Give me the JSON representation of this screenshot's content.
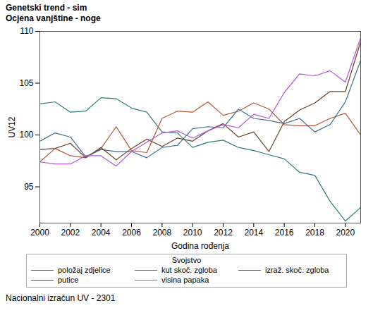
{
  "chart_data": {
    "type": "line",
    "title": "Genetski trend - sim",
    "subtitle": "Ocjena vanjštine - noge",
    "xlabel": "Godina rođenja",
    "ylabel": "UV12",
    "legend_title": "Svojstvo",
    "caption": "Nacionalni izračun UV - 2301",
    "legend": "bottom",
    "grid": false,
    "x": [
      2000,
      2001,
      2002,
      2003,
      2004,
      2005,
      2006,
      2007,
      2008,
      2009,
      2010,
      2011,
      2012,
      2013,
      2014,
      2015,
      2016,
      2017,
      2018,
      2019,
      2020,
      2021
    ],
    "xlim": [
      2000,
      2021
    ],
    "xticks": [
      2000,
      2002,
      2004,
      2006,
      2008,
      2010,
      2012,
      2014,
      2016,
      2018,
      2020
    ],
    "ylim": [
      91.5,
      110
    ],
    "yticks": [
      95,
      100,
      105,
      110
    ],
    "series": [
      {
        "name": "položaj zdjelice",
        "color": "#2a7f78",
        "values": [
          103.0,
          103.2,
          102.2,
          102.3,
          103.6,
          103.5,
          102.6,
          102.2,
          100.3,
          100.2,
          98.8,
          99.3,
          99.5,
          98.8,
          98.5,
          98.1,
          97.7,
          96.4,
          96.1,
          93.6,
          91.7,
          93.0
        ]
      },
      {
        "name": "kut skoč. zgloba",
        "color": "#b0563a",
        "values": [
          97.4,
          98.7,
          98.0,
          97.8,
          98.7,
          100.8,
          98.5,
          98.3,
          101.6,
          102.3,
          102.2,
          103.2,
          101.9,
          102.3,
          103.1,
          102.5,
          101.0,
          100.9,
          100.9,
          101.6,
          102.1,
          100.0
        ]
      },
      {
        "name": "izraž. skoč. zgloba",
        "color": "#3e6e8e",
        "values": [
          99.4,
          100.2,
          99.8,
          97.9,
          98.6,
          98.4,
          98.4,
          97.8,
          98.8,
          99.0,
          100.6,
          100.8,
          100.7,
          102.5,
          101.6,
          101.4,
          101.1,
          101.6,
          100.3,
          101.0,
          103.2,
          107.2
        ]
      },
      {
        "name": "putice",
        "color": "#6b4226",
        "values": [
          98.6,
          98.7,
          99.2,
          97.8,
          98.8,
          97.6,
          98.7,
          99.6,
          98.9,
          99.7,
          99.4,
          100.4,
          101.1,
          99.8,
          100.3,
          98.4,
          101.3,
          102.4,
          103.1,
          104.2,
          104.2,
          109.0
        ]
      },
      {
        "name": "visina papaka",
        "color": "#b356d6",
        "values": [
          97.4,
          97.2,
          97.2,
          98.0,
          98.0,
          97.0,
          98.4,
          99.3,
          100.2,
          100.4,
          99.7,
          100.4,
          101.0,
          100.7,
          102.0,
          101.6,
          104.1,
          105.9,
          105.7,
          106.2,
          105.1,
          109.4
        ]
      }
    ]
  }
}
